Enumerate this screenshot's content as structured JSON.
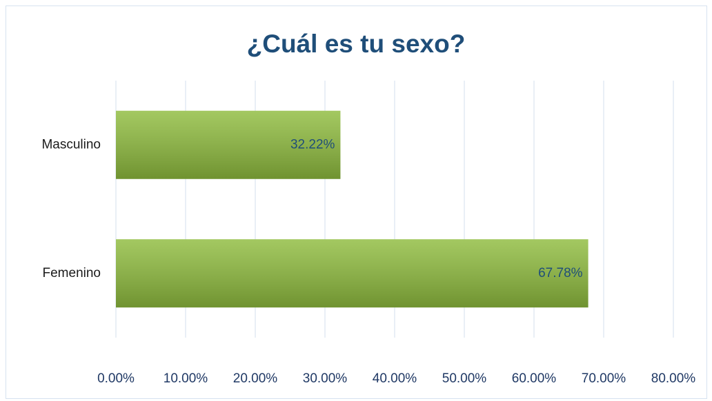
{
  "chart_data": {
    "type": "bar",
    "orientation": "horizontal",
    "title": "¿Cuál es tu sexo?",
    "categories": [
      "Masculino",
      "Femenino"
    ],
    "values": [
      32.22,
      67.78
    ],
    "value_labels": [
      "32.22%",
      "67.78%"
    ],
    "color": "#8fbc3e",
    "xlim": [
      0,
      80
    ],
    "xticks": [
      {
        "value": 0,
        "label": "0.00%"
      },
      {
        "value": 10,
        "label": "10.00%"
      },
      {
        "value": 20,
        "label": "20.00%"
      },
      {
        "value": 30,
        "label": "30.00%"
      },
      {
        "value": 40,
        "label": "40.00%"
      },
      {
        "value": 50,
        "label": "50.00%"
      },
      {
        "value": 60,
        "label": "60.00%"
      },
      {
        "value": 70,
        "label": "70.00%"
      },
      {
        "value": 80,
        "label": "80.00%"
      }
    ],
    "grid": true
  }
}
